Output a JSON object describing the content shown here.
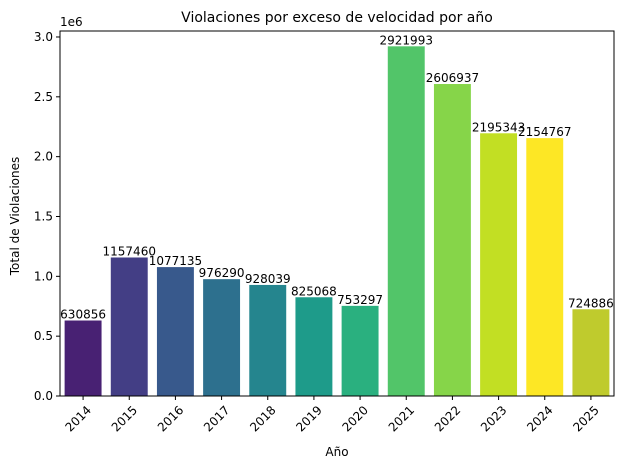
{
  "chart_data": {
    "type": "bar",
    "title": "Violaciones por exceso de velocidad por año",
    "xlabel": "Año",
    "ylabel": "Total de Violaciones",
    "y_scale_note": "1e6",
    "categories": [
      "2014",
      "2015",
      "2016",
      "2017",
      "2018",
      "2019",
      "2020",
      "2021",
      "2022",
      "2023",
      "2024",
      "2025"
    ],
    "values": [
      630856,
      1157460,
      1077135,
      976290,
      928039,
      825068,
      753297,
      2921993,
      2606937,
      2195343,
      2154767,
      724886
    ],
    "data_labels": [
      "630856",
      "1157460",
      "1077135",
      "976290",
      "928039",
      "825068",
      "753297",
      "2921993",
      "2606937",
      "2195343",
      "2154767",
      "724886"
    ],
    "colors": [
      "#482173",
      "#433e85",
      "#38598c",
      "#2d708e",
      "#25858e",
      "#1e9b8a",
      "#2ab07f",
      "#52c569",
      "#86d549",
      "#c2df23",
      "#fde725",
      "#bfcb2d"
    ],
    "ylim": [
      0,
      3050000
    ],
    "yticks": [
      0,
      500000,
      1000000,
      1500000,
      2000000,
      2500000,
      3000000
    ],
    "ytick_labels": [
      "0.0",
      "0.5",
      "1.0",
      "1.5",
      "2.0",
      "2.5",
      "3.0"
    ],
    "grid": false,
    "legend": "none"
  }
}
